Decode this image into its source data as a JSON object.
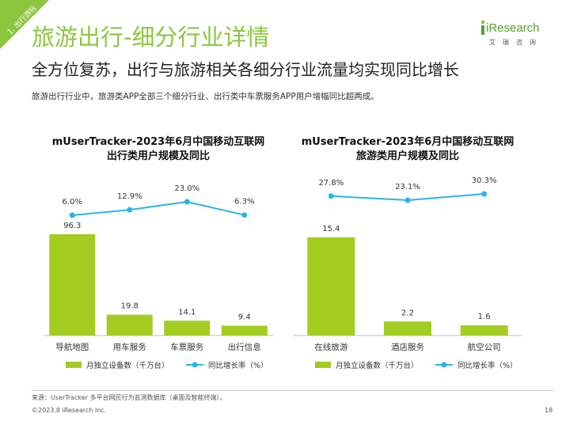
{
  "section_tag": "1. 出行游玩",
  "title": "旅游出行-细分行业详情",
  "subtitle": "全方位复苏，出行与旅游相关各细分行业流量均实现同比增长",
  "intro": "旅游出行行业中，旅游类APP全部三个细分行业、出行类中车票服务APP用户增幅同比超两成。",
  "logo": {
    "word": "iResearch",
    "sub": "艾瑞咨询"
  },
  "colors": {
    "brand_green": "#8cc63f",
    "bar": "#a3cc21",
    "line": "#2bb4e6"
  },
  "chart_data": [
    {
      "type": "bar",
      "title": "mUserTracker-2023年6月中国移动互联网\n出行类用户规模及同比",
      "categories": [
        "导航地图",
        "用车服务",
        "车票服务",
        "出行信息"
      ],
      "series": [
        {
          "name": "月独立设备数（千万台）",
          "type": "bar",
          "values": [
            96.3,
            19.8,
            14.1,
            9.4
          ],
          "labels": [
            "96.3",
            "19.8",
            "14.1",
            "9.4"
          ]
        },
        {
          "name": "同比增长率（%）",
          "type": "line",
          "values": [
            6.0,
            12.9,
            23.0,
            6.3
          ],
          "labels": [
            "6.0%",
            "12.9%",
            "23.0%",
            "6.3%"
          ]
        }
      ]
    },
    {
      "type": "bar",
      "title": "mUserTracker-2023年6月中国移动互联网\n旅游类用户规模及同比",
      "categories": [
        "在线旅游",
        "酒店服务",
        "航空公司"
      ],
      "series": [
        {
          "name": "月独立设备数（千万台）",
          "type": "bar",
          "values": [
            15.4,
            2.2,
            1.6
          ],
          "labels": [
            "15.4",
            "2.2",
            "1.6"
          ]
        },
        {
          "name": "同比增长率（%）",
          "type": "line",
          "values": [
            27.8,
            23.1,
            30.3
          ],
          "labels": [
            "27.8%",
            "23.1%",
            "30.3%"
          ]
        }
      ]
    }
  ],
  "footer": {
    "source": "来源：UserTracker 多平台网民行为监测数据库（桌面及智能终端）。",
    "copyright": "©2023.8 iResearch Inc.",
    "page": "18"
  }
}
